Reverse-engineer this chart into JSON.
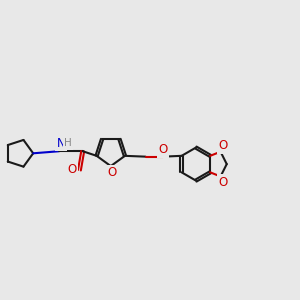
{
  "bg_color": "#e8e8e8",
  "bond_color": "#1a1a1a",
  "o_color": "#cc0000",
  "n_color": "#0000cc",
  "h_color": "#888888",
  "lw": 1.5,
  "dbo": 0.028,
  "xlim": [
    -1.0,
    6.2
  ],
  "ylim": [
    -1.5,
    1.8
  ]
}
